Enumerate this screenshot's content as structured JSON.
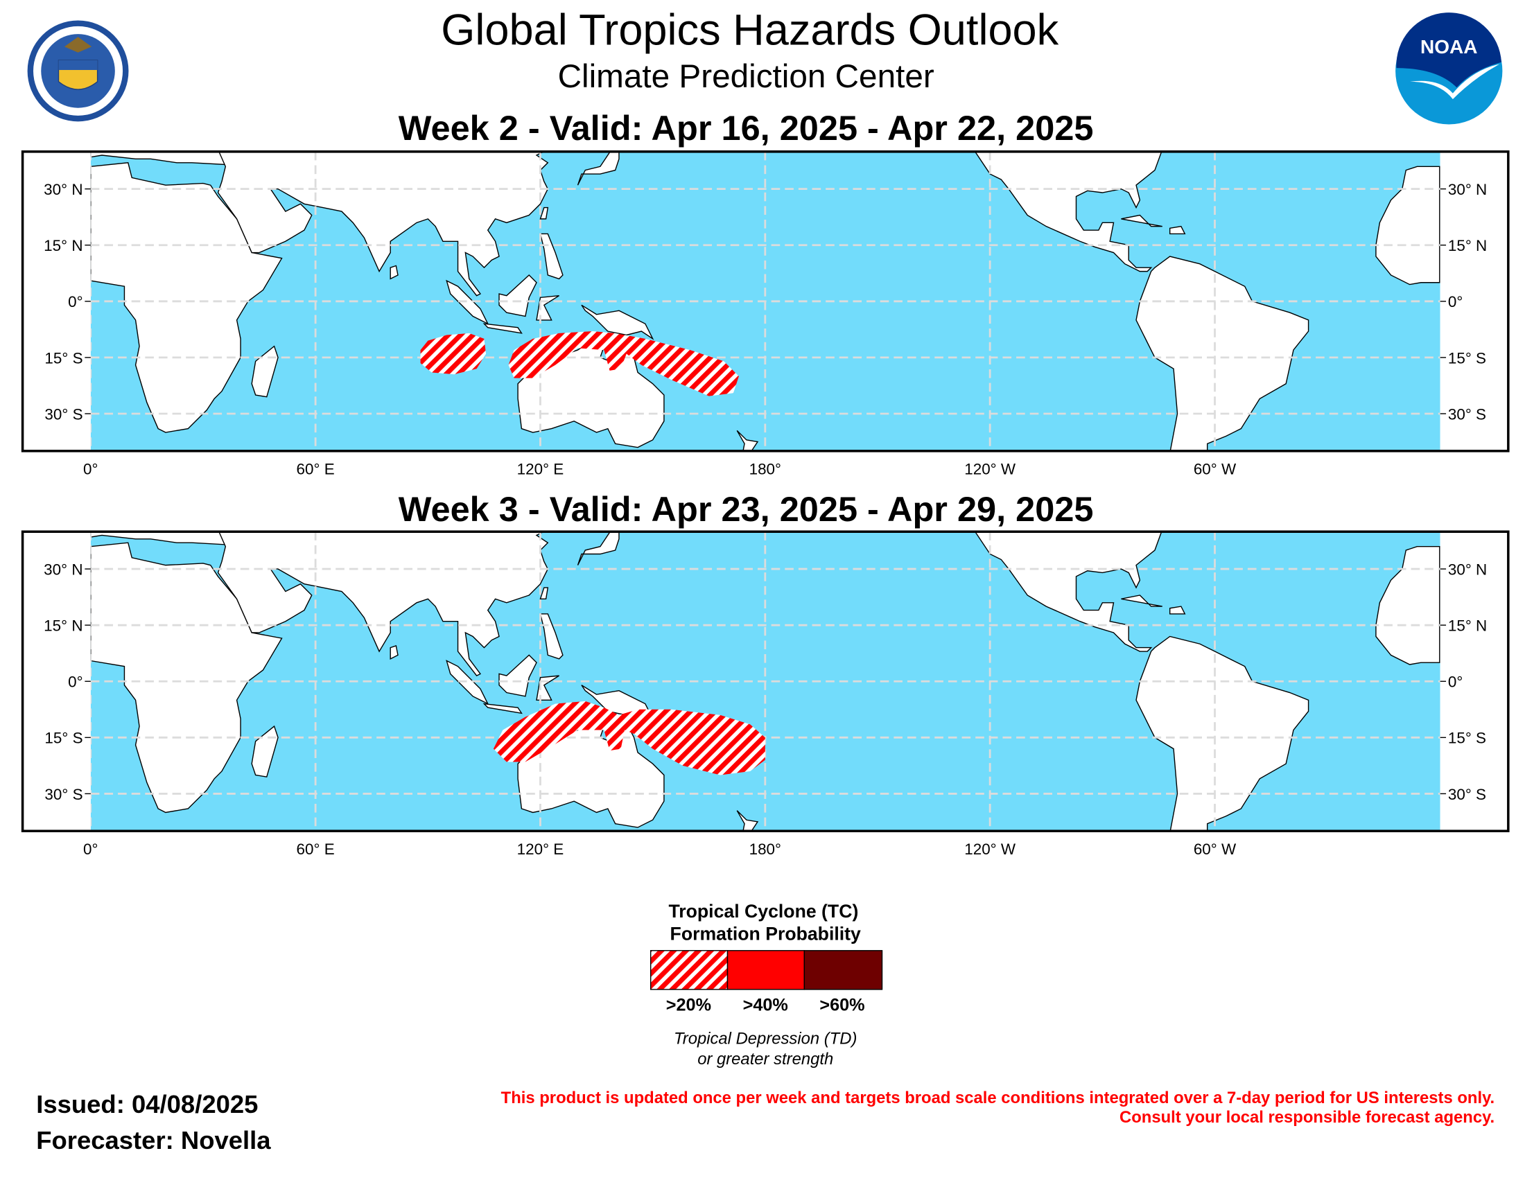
{
  "header": {
    "title": "Global Tropics Hazards Outlook",
    "subtitle": "Climate Prediction Center",
    "left_logo": {
      "name": "department-of-commerce-seal",
      "text": "DEPARTMENT OF COMMERCE · UNITED STATES OF AMERICA"
    },
    "right_logo": {
      "name": "noaa-logo",
      "text": "NOAA"
    }
  },
  "colors": {
    "ocean": "#72dcfb",
    "land": "#ffffff",
    "grid": "#dcdcdc",
    "tc20": "#ff0000",
    "tc40": "#ff0000",
    "tc60": "#6e0000",
    "disclaimer": "#ff0000"
  },
  "maps": [
    {
      "title": "Week 2 - Valid: Apr 16, 2025 - Apr 22, 2025",
      "lat_labels_left": [
        "30° N",
        "15° N",
        "0°",
        "15° S",
        "30° S"
      ],
      "lat_labels_right": [
        "30° N",
        "15° N",
        "0°",
        "15° S",
        "30° S"
      ],
      "lon_labels": [
        "0°",
        "60° E",
        "120° E",
        "180°",
        "120° W",
        "60° W"
      ],
      "hazards": [
        {
          "category": ">20%",
          "polygon": [
            [
              88,
              -13
            ],
            [
              90,
              -10.5
            ],
            [
              95,
              -9
            ],
            [
              101,
              -8.5
            ],
            [
              105,
              -10
            ],
            [
              105.5,
              -14
            ],
            [
              103,
              -18
            ],
            [
              97,
              -19.5
            ],
            [
              91,
              -19
            ],
            [
              88,
              -16.5
            ]
          ]
        },
        {
          "category": ">20%",
          "polygon": [
            [
              113,
              -13
            ],
            [
              118,
              -10
            ],
            [
              125,
              -8.5
            ],
            [
              134,
              -8
            ],
            [
              140,
              -8.5
            ],
            [
              148,
              -10
            ],
            [
              160,
              -13
            ],
            [
              169,
              -16
            ],
            [
              173,
              -20
            ],
            [
              171.5,
              -24.5
            ],
            [
              165,
              -25.3
            ],
            [
              155,
              -21
            ],
            [
              147,
              -17
            ],
            [
              143,
              -14
            ],
            [
              141.5,
              -18
            ],
            [
              138.5,
              -18.5
            ],
            [
              137,
              -13
            ],
            [
              130,
              -12.5
            ],
            [
              124,
              -17
            ],
            [
              118,
              -20.5
            ],
            [
              113,
              -20.5
            ],
            [
              111.5,
              -17
            ]
          ]
        }
      ]
    },
    {
      "title": "Week 3 - Valid: Apr 23, 2025 - Apr 29, 2025",
      "lat_labels_left": [
        "30° N",
        "15° N",
        "0°",
        "15° S",
        "30° S"
      ],
      "lat_labels_right": [
        "30° N",
        "15° N",
        "0°",
        "15° S",
        "30° S"
      ],
      "lon_labels": [
        "0°",
        "60° E",
        "120° E",
        "180°",
        "120° W",
        "60° W"
      ],
      "hazards": [
        {
          "category": ">20%",
          "polygon": [
            [
              110,
              -13
            ],
            [
              116,
              -9.5
            ],
            [
              124,
              -6
            ],
            [
              132,
              -5.3
            ],
            [
              137,
              -7
            ],
            [
              141,
              -9
            ],
            [
              146,
              -7.5
            ],
            [
              155,
              -7.5
            ],
            [
              168,
              -9
            ],
            [
              176,
              -11.5
            ],
            [
              180,
              -15
            ],
            [
              180,
              -21
            ],
            [
              176,
              -24
            ],
            [
              168,
              -25
            ],
            [
              158,
              -22.5
            ],
            [
              150,
              -18
            ],
            [
              145,
              -14
            ],
            [
              142.5,
              -13
            ],
            [
              141.5,
              -18
            ],
            [
              138.5,
              -18.5
            ],
            [
              137,
              -13
            ],
            [
              130,
              -13
            ],
            [
              122,
              -18
            ],
            [
              116,
              -21.5
            ],
            [
              111,
              -21.5
            ],
            [
              107.5,
              -18
            ]
          ]
        }
      ]
    }
  ],
  "legend": {
    "title_line1": "Tropical Cyclone (TC)",
    "title_line2": "Formation Probability",
    "items": [
      {
        "label": ">20%",
        "style": "hatched",
        "color": "#ff0000"
      },
      {
        "label": ">40%",
        "style": "solid",
        "color": "#ff0000"
      },
      {
        "label": ">60%",
        "style": "solid",
        "color": "#6e0000"
      }
    ],
    "note_line1": "Tropical Depression (TD)",
    "note_line2": "or greater strength"
  },
  "footer": {
    "issued": "Issued: 04/08/2025",
    "forecaster": "Forecaster: Novella",
    "disclaimer_line1": "This product is updated once per week and targets broad scale conditions integrated over a 7-day period for US interests only.",
    "disclaimer_line2": "Consult your local responsible forecast agency."
  }
}
